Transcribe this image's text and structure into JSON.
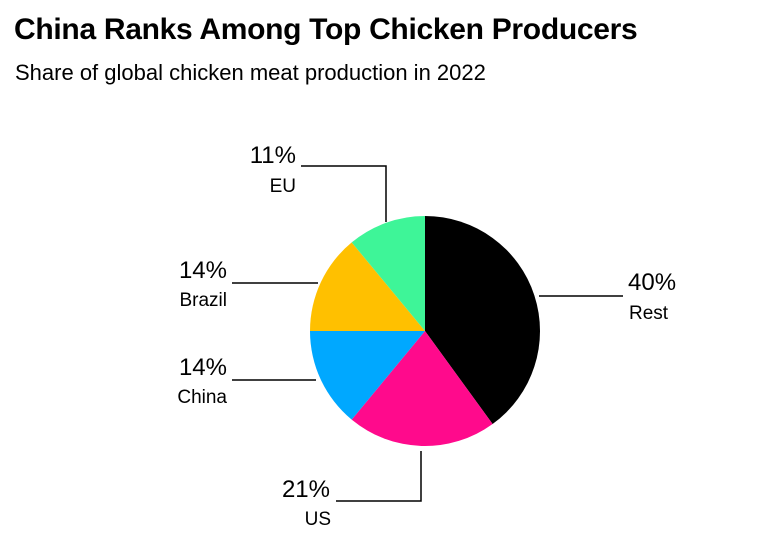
{
  "header": {
    "title": "China Ranks Among Top Chicken Producers",
    "subtitle": "Share of global chicken meat production in 2022"
  },
  "chart_data": {
    "type": "pie",
    "title": "China Ranks Among Top Chicken Producers",
    "subtitle": "Share of global chicken meat production in 2022",
    "unit": "%",
    "slices": [
      {
        "label": "Rest",
        "value": 40,
        "value_label": "40%",
        "color": "#000000"
      },
      {
        "label": "US",
        "value": 21,
        "value_label": "21%",
        "color": "#ff0a8c"
      },
      {
        "label": "China",
        "value": 14,
        "value_label": "14%",
        "color": "#00a8ff"
      },
      {
        "label": "Brazil",
        "value": 14,
        "value_label": "14%",
        "color": "#ffc000"
      },
      {
        "label": "EU",
        "value": 11,
        "value_label": "11%",
        "color": "#3ef598"
      }
    ]
  }
}
